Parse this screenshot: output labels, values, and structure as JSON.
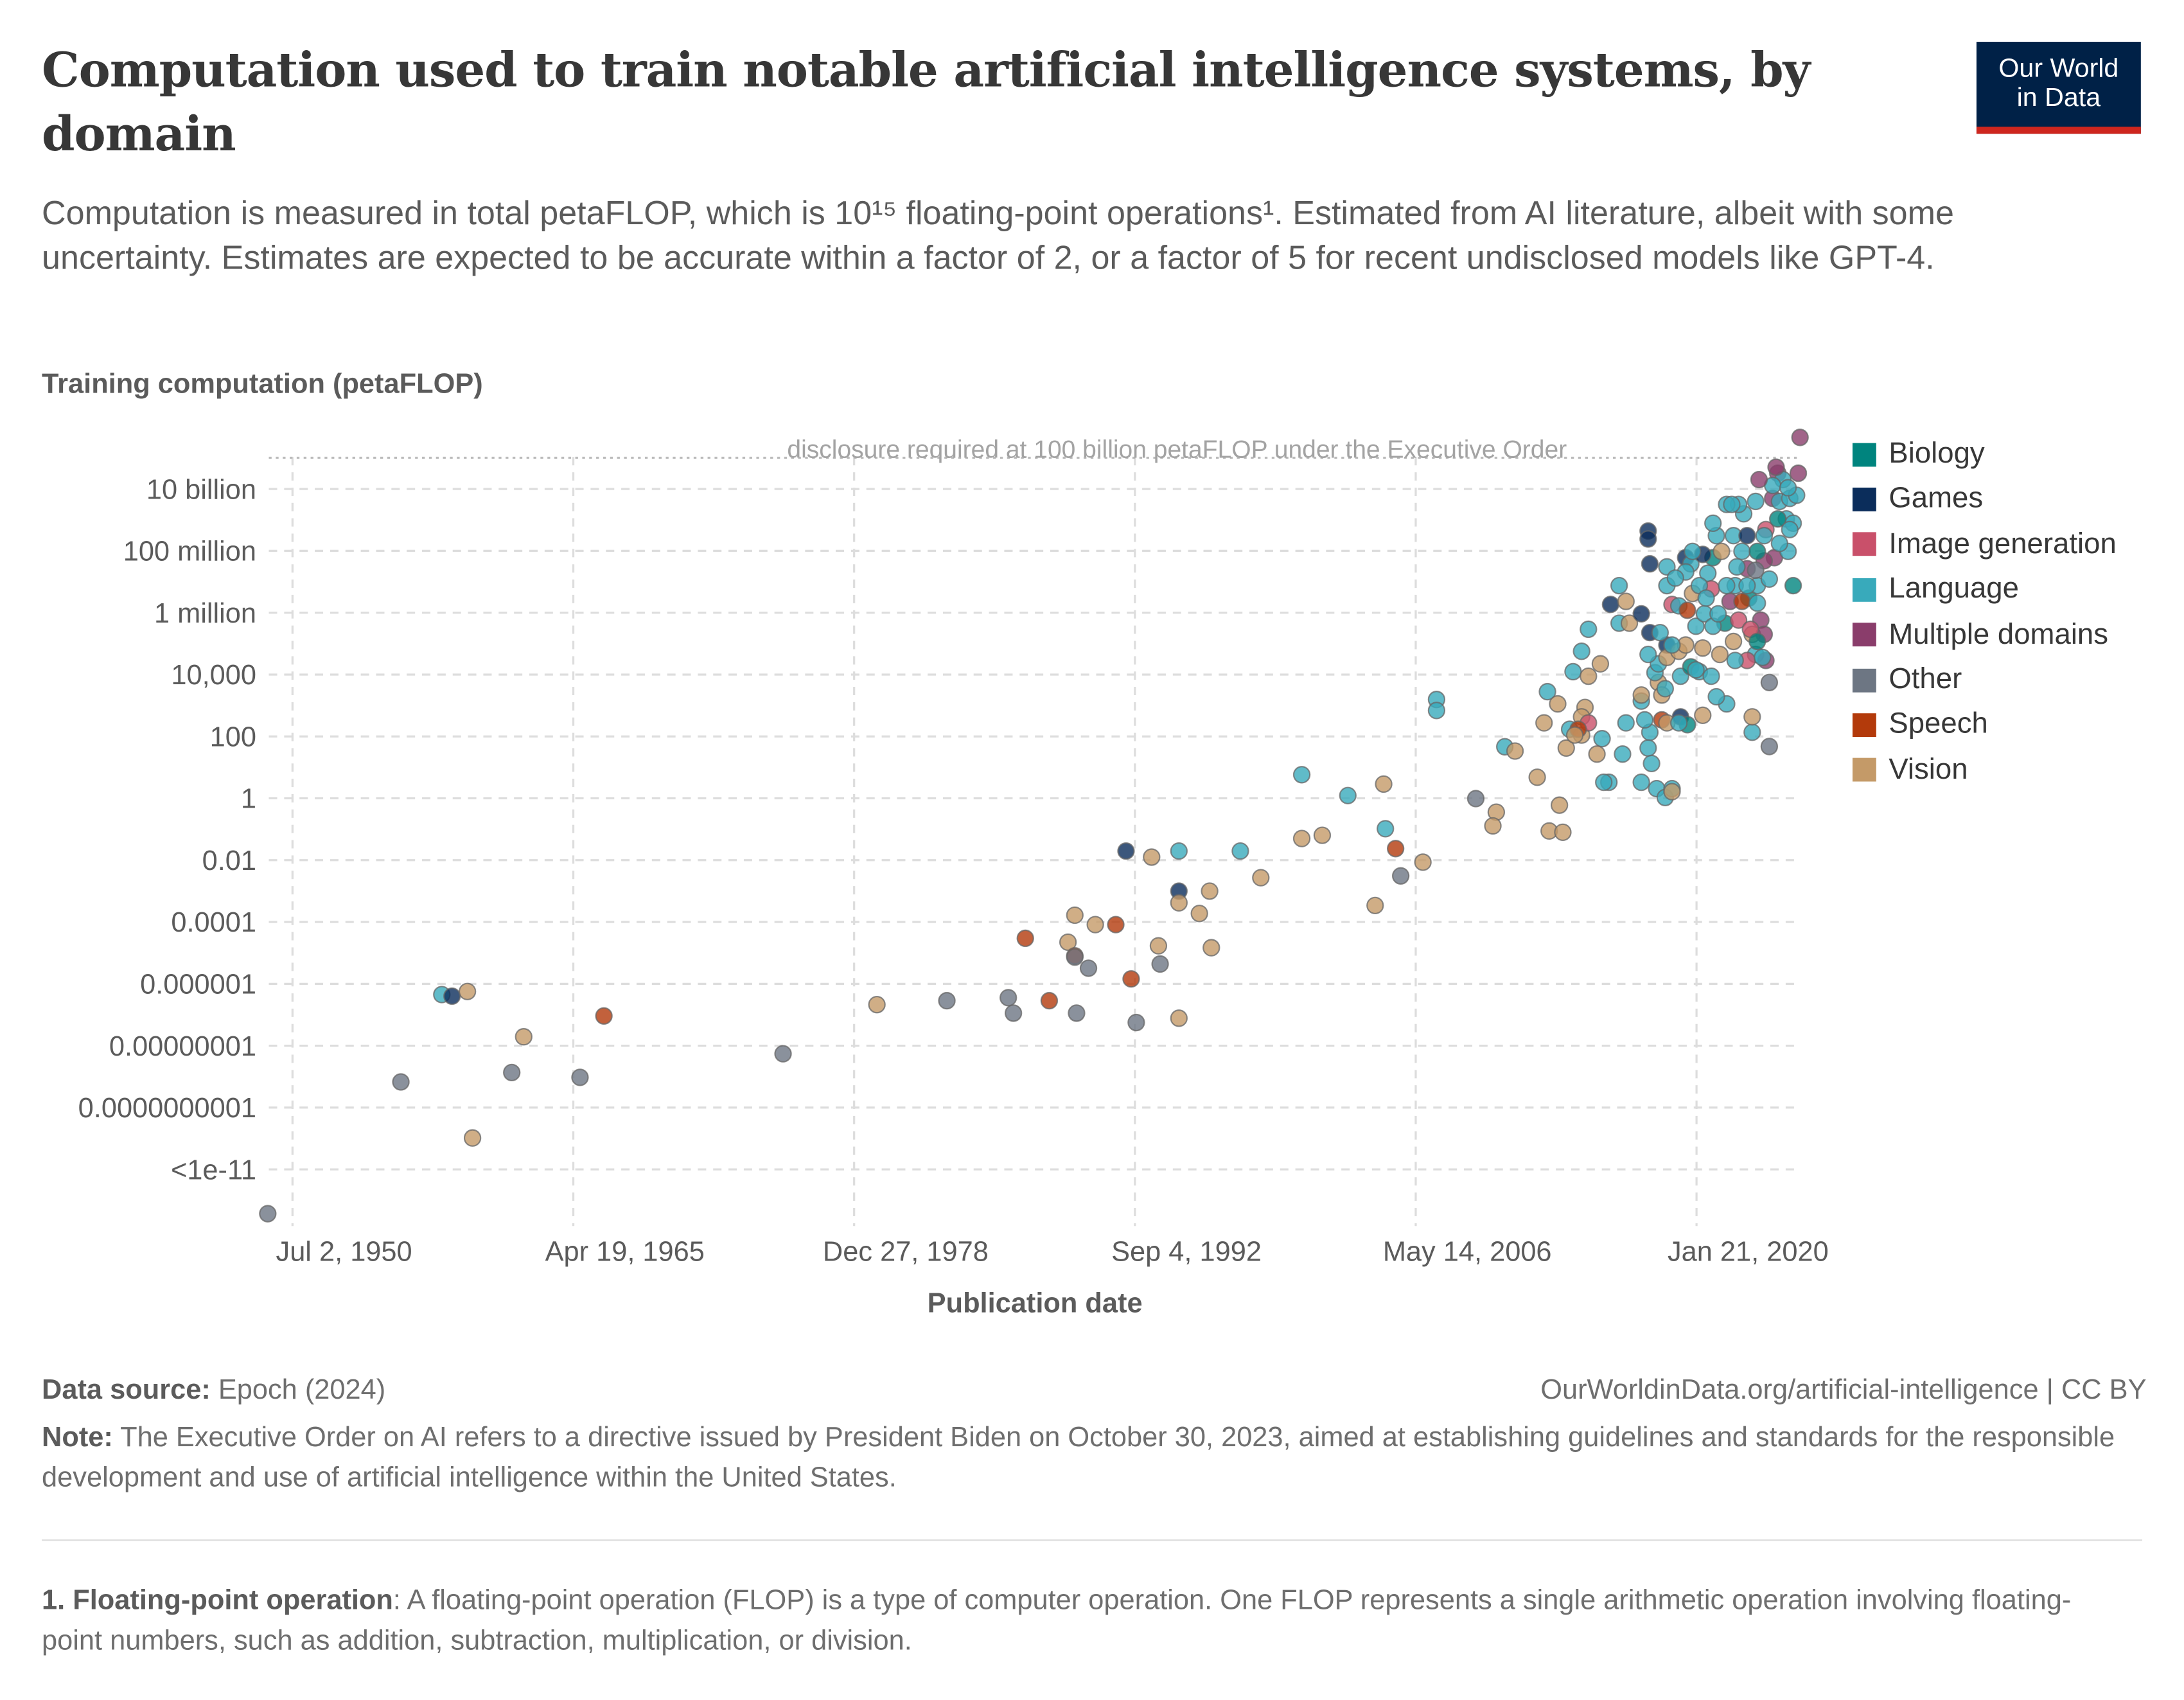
{
  "header": {
    "title": "Computation used to train notable artificial intelligence systems, by domain",
    "subtitle": "Computation is measured in total petaFLOP, which is 10¹⁵  floating-point operations¹. Estimated from AI literature, albeit with some uncertainty. Estimates are expected to be accurate within a factor of 2, or a factor of 5 for recent undisclosed models like GPT-4.",
    "logo_line1": "Our World",
    "logo_line2": "in Data"
  },
  "chart_data": {
    "type": "scatter",
    "ylabel": "Training computation (petaFLOP)",
    "xlabel": "Publication date",
    "y_scale": "log",
    "grid": true,
    "legend_position": "right",
    "y_ticks": [
      "10 billion",
      "100 million",
      "1 million",
      "10,000",
      "100",
      "1",
      "0.01",
      "0.0001",
      "0.000001",
      "0.00000001",
      "0.0000000001",
      "<1e-11"
    ],
    "x_ticks": [
      "Jul 2, 1950",
      "Apr 19, 1965",
      "Dec 27, 1978",
      "Sep 4, 1992",
      "May 14, 2006",
      "Jan 21, 2020"
    ],
    "reference_line": {
      "value": 100000000000,
      "label": "disclosure required at 100 billion petaFLOP under the Executive Order"
    },
    "categories": [
      {
        "name": "Biology",
        "color": "#00847e"
      },
      {
        "name": "Games",
        "color": "#0b2d5b"
      },
      {
        "name": "Image generation",
        "color": "#c9506a"
      },
      {
        "name": "Language",
        "color": "#38aabb"
      },
      {
        "name": "Multiple domains",
        "color": "#8a3d6b"
      },
      {
        "name": "Other",
        "color": "#6d7683"
      },
      {
        "name": "Speech",
        "color": "#b33a0b"
      },
      {
        "name": "Vision",
        "color": "#c49a68"
      }
    ],
    "points": [
      [
        "1949-04",
        6e-14,
        "Other"
      ],
      [
        "1955-10",
        1e-09,
        "Other"
      ],
      [
        "1957-10",
        6.3e-07,
        "Language"
      ],
      [
        "1958-04",
        5.6e-07,
        "Games"
      ],
      [
        "1959-01",
        7.9e-07,
        "Vision"
      ],
      [
        "1959-04",
        1.6e-11,
        "Vision"
      ],
      [
        "1961-03",
        2e-09,
        "Other"
      ],
      [
        "1961-10",
        2.8e-08,
        "Vision"
      ],
      [
        "1964-07",
        1.4e-09,
        "Other"
      ],
      [
        "1965-09",
        1.3e-07,
        "Speech"
      ],
      [
        "1974-06",
        8e-09,
        "Other"
      ],
      [
        "1979-01",
        3e-07,
        "Vision"
      ],
      [
        "1982-06",
        4e-07,
        "Other"
      ],
      [
        "1985-06",
        5e-07,
        "Other"
      ],
      [
        "1985-09",
        1.6e-07,
        "Other"
      ],
      [
        "1986-04",
        4e-05,
        "Speech"
      ],
      [
        "1987-06",
        4e-07,
        "Speech"
      ],
      [
        "1988-05",
        3e-05,
        "Vision"
      ],
      [
        "1988-09",
        0.00022,
        "Vision"
      ],
      [
        "1988-09",
        1.1e-05,
        "Speech"
      ],
      [
        "1988-09",
        1e-05,
        "Other"
      ],
      [
        "1988-10",
        1.6e-07,
        "Other"
      ],
      [
        "1989-05",
        4.4e-06,
        "Other"
      ],
      [
        "1989-09",
        0.00011,
        "Vision"
      ],
      [
        "1990-09",
        0.00011,
        "Speech"
      ],
      [
        "1991-03",
        0.025,
        "Games"
      ],
      [
        "1991-06",
        2e-06,
        "Speech"
      ],
      [
        "1991-09",
        8e-08,
        "Other"
      ],
      [
        "1992-06",
        0.016,
        "Vision"
      ],
      [
        "1992-10",
        2.3e-05,
        "Vision"
      ],
      [
        "1992-11",
        6e-06,
        "Other"
      ],
      [
        "1993-10",
        0.025,
        "Language"
      ],
      [
        "1993-10",
        0.0013,
        "Games"
      ],
      [
        "1993-10",
        0.00055,
        "Vision"
      ],
      [
        "1993-10",
        1.1e-07,
        "Vision"
      ],
      [
        "1994-10",
        0.00025,
        "Vision"
      ],
      [
        "1995-04",
        0.0013,
        "Vision"
      ],
      [
        "1995-05",
        2e-05,
        "Vision"
      ],
      [
        "1996-10",
        0.025,
        "Language"
      ],
      [
        "1997-10",
        0.0035,
        "Vision"
      ],
      [
        "1999-10",
        7,
        "Language"
      ],
      [
        "1999-10",
        0.063,
        "Vision"
      ],
      [
        "2000-10",
        0.08,
        "Vision"
      ],
      [
        "2002-01",
        1.5,
        "Language"
      ],
      [
        "2003-05",
        0.00045,
        "Vision"
      ],
      [
        "2003-10",
        3.5,
        "Vision"
      ],
      [
        "2003-11",
        0.13,
        "Language"
      ],
      [
        "2004-05",
        0.03,
        "Speech"
      ],
      [
        "2004-08",
        0.004,
        "Other"
      ],
      [
        "2005-09",
        0.011,
        "Vision"
      ],
      [
        "2006-05",
        1800,
        "Language"
      ],
      [
        "2006-05",
        800,
        "Language"
      ],
      [
        "2008-04",
        1.2,
        "Other"
      ],
      [
        "2009-04",
        0.44,
        "Vision"
      ],
      [
        "2009-02",
        0.16,
        "Vision"
      ],
      [
        "2009-09",
        55,
        "Language"
      ],
      [
        "2010-03",
        40,
        "Vision"
      ],
      [
        "2011-08",
        320,
        "Vision"
      ],
      [
        "2011-10",
        3200,
        "Language"
      ],
      [
        "2011-04",
        5.8,
        "Vision"
      ],
      [
        "2011-11",
        0.11,
        "Vision"
      ],
      [
        "2012-05",
        0.74,
        "Vision"
      ],
      [
        "2012-09",
        50,
        "Vision"
      ],
      [
        "2012-11",
        200,
        "Language"
      ],
      [
        "2013-01",
        14000,
        "Language"
      ],
      [
        "2013-10",
        320000,
        "Language"
      ],
      [
        "2013-06",
        63000,
        "Language"
      ],
      [
        "2012-04",
        1300,
        "Vision"
      ],
      [
        "2013-08",
        1000,
        "Vision"
      ],
      [
        "2013-06",
        500,
        "Vision"
      ],
      [
        "2013-06",
        130,
        "Vision"
      ],
      [
        "2013-10",
        320,
        "Image generation"
      ],
      [
        "2012-07",
        0.1,
        "Vision"
      ],
      [
        "2013-04",
        200,
        "Speech"
      ],
      [
        "2013-10",
        10000,
        "Vision"
      ],
      [
        "2014-05",
        25000,
        "Vision"
      ],
      [
        "2014-06",
        100,
        "Language"
      ],
      [
        "2014-10",
        4,
        "Language"
      ],
      [
        "2014-07",
        4,
        "Language"
      ],
      [
        "2014-11",
        2000000,
        "Games"
      ],
      [
        "2015-04",
        500000,
        "Language"
      ],
      [
        "2015-08",
        2500000,
        "Vision"
      ],
      [
        "2015-10",
        500000,
        "Vision"
      ],
      [
        "2015-04",
        8000000,
        "Language"
      ],
      [
        "2016-09",
        450000000,
        "Games"
      ],
      [
        "2016-09",
        250000000,
        "Games"
      ],
      [
        "2016-10",
        40000000,
        "Games"
      ],
      [
        "2016-10",
        160,
        "Language"
      ],
      [
        "2016-05",
        1600,
        "Language"
      ],
      [
        "2016-07",
        400,
        "Language"
      ],
      [
        "2016-09",
        50,
        "Language"
      ],
      [
        "2016-11",
        16,
        "Language"
      ],
      [
        "2017-02",
        2.5,
        "Language"
      ],
      [
        "2017-07",
        1.3,
        "Language"
      ],
      [
        "2017-11",
        2.5,
        "Language"
      ],
      [
        "2016-05",
        4,
        "Language"
      ],
      [
        "2017-03",
        6300,
        "Vision"
      ],
      [
        "2017-05",
        400,
        "Speech"
      ],
      [
        "2017-08",
        320,
        "Vision"
      ],
      [
        "2017-05",
        2500,
        "Vision"
      ],
      [
        "2017-11",
        2,
        "Vision"
      ],
      [
        "2016-05",
        2500,
        "Vision"
      ],
      [
        "2017-01",
        13000,
        "Language"
      ],
      [
        "2017-07",
        4000,
        "Language"
      ],
      [
        "2017-03",
        25000,
        "Language"
      ],
      [
        "2017-08",
        100000,
        "Games"
      ],
      [
        "2016-09",
        50000,
        "Language"
      ],
      [
        "2017-08",
        32000000,
        "Language"
      ],
      [
        "2016-05",
        1000000,
        "Games"
      ],
      [
        "2016-10",
        250000,
        "Games"
      ],
      [
        "2017-08",
        40000,
        "Vision"
      ],
      [
        "2017-11",
        2000000,
        "Image generation"
      ],
      [
        "2017-08",
        8000000,
        "Language"
      ],
      [
        "2018-03",
        63000,
        "Vision"
      ],
      [
        "2018-04",
        500,
        "Games"
      ],
      [
        "2018-04",
        10000,
        "Language"
      ],
      [
        "2018-07",
        100000,
        "Vision"
      ],
      [
        "2018-03",
        1800000,
        "Language"
      ],
      [
        "2018-07",
        63000000,
        "Games"
      ],
      [
        "2018-10",
        40000000,
        "Language"
      ],
      [
        "2018-08",
        1300000,
        "Speech"
      ],
      [
        "2018-11",
        4500000,
        "Vision"
      ],
      [
        "2019-01",
        400000,
        "Language"
      ],
      [
        "2018-10",
        20000,
        "Biology"
      ],
      [
        "2019-03",
        14000,
        "Language"
      ],
      [
        "2019-05",
        80000,
        "Vision"
      ],
      [
        "2019-06",
        1000000,
        "Language"
      ],
      [
        "2019-08",
        20000000,
        "Language"
      ],
      [
        "2019-10",
        6300000,
        "Image generation"
      ],
      [
        "2019-11",
        63000000,
        "Biology"
      ],
      [
        "2020-01",
        320000000,
        "Language"
      ],
      [
        "2020-03",
        50000,
        "Vision"
      ],
      [
        "2020-06",
        500000,
        "Biology"
      ],
      [
        "2020-07",
        1300,
        "Language"
      ],
      [
        "2020-09",
        2500000,
        "Multiple domains"
      ],
      [
        "2020-11",
        130000,
        "Vision"
      ],
      [
        "2020-12",
        8000000,
        "Language"
      ],
      [
        "2021-02",
        630000,
        "Image generation"
      ],
      [
        "2021-04",
        100000000,
        "Language"
      ],
      [
        "2021-05",
        1600000000,
        "Language"
      ],
      [
        "2021-07",
        28000000,
        "Multiple domains"
      ],
      [
        "2021-08",
        3200000,
        "Biology"
      ],
      [
        "2021-10",
        220000,
        "Vision"
      ],
      [
        "2021-12",
        50000,
        "Language"
      ],
      [
        "2022-01",
        8000000,
        "Language"
      ],
      [
        "2022-03",
        630000,
        "Multiple domains"
      ],
      [
        "2021-10",
        160,
        "Language"
      ],
      [
        "2022-06",
        500000000,
        "Image generation"
      ],
      [
        "2022-08",
        6300,
        "Other"
      ],
      [
        "2022-08",
        56,
        "Other"
      ],
      [
        "2022-10",
        5000000000,
        "Multiple domains"
      ],
      [
        "2022-11",
        63000000,
        "Multiple domains"
      ],
      [
        "2023-01",
        32000000000,
        "Multiple domains"
      ],
      [
        "2023-02",
        4000000000,
        "Language"
      ],
      [
        "2023-04",
        20000000000,
        "Language"
      ],
      [
        "2023-06",
        1100000000,
        "Language"
      ],
      [
        "2023-08",
        5000000000,
        "Language"
      ],
      [
        "2023-10",
        800000000,
        "Language"
      ],
      [
        "2023-12",
        6300000000,
        "Language"
      ],
      [
        "2023-10",
        8000000,
        "Biology"
      ],
      [
        "2022-12",
        50000000000,
        "Multiple domains"
      ],
      [
        "2022-10",
        13000000000,
        "Language"
      ],
      [
        "2022-02",
        20000000000,
        "Multiple domains"
      ],
      [
        "2024-02",
        450000000000,
        "Multiple domains"
      ],
      [
        "2024-01",
        32000000000,
        "Multiple domains"
      ],
      [
        "2022-05",
        50000000,
        "Multiple domains"
      ],
      [
        "2021-12",
        25000000,
        "Other"
      ],
      [
        "2021-02",
        3200000000,
        "Language"
      ],
      [
        "2020-07",
        3200000000,
        "Language"
      ],
      [
        "2020-04",
        100000000,
        "Vision"
      ],
      [
        "2020-11",
        320000000,
        "Language"
      ],
      [
        "2021-07",
        320000000,
        "Games"
      ],
      [
        "2022-01",
        100000000,
        "Biology"
      ],
      [
        "2022-05",
        320000000,
        "Language"
      ],
      [
        "2022-06",
        32000,
        "Multiple domains"
      ],
      [
        "2021-07",
        32000,
        "Image generation"
      ],
      [
        "2022-05",
        220000,
        "Multiple domains"
      ],
      [
        "2020-01",
        2200,
        "Language"
      ],
      [
        "2019-05",
        560,
        "Vision"
      ],
      [
        "2018-08",
        280,
        "Biology"
      ],
      [
        "2021-10",
        500,
        "Vision"
      ],
      [
        "2022-04",
        40000,
        "Language"
      ],
      [
        "2023-01",
        1100000000,
        "Biology"
      ],
      [
        "2023-07",
        100000000,
        "Language"
      ],
      [
        "2018-07",
        22000000,
        "Language"
      ],
      [
        "2019-05",
        80000000,
        "Games"
      ],
      [
        "2019-11",
        400000,
        "Language"
      ],
      [
        "2021-04",
        2500000,
        "Speech"
      ],
      [
        "2021-09",
        320000,
        "Image generation"
      ],
      [
        "2022-01",
        130000,
        "Biology"
      ],
      [
        "2018-01",
        14000000,
        "Language"
      ],
      [
        "2018-11",
        100000000,
        "Language"
      ],
      [
        "2019-03",
        8000000,
        "Language"
      ],
      [
        "2019-07",
        3200000,
        "Language"
      ],
      [
        "2020-02",
        1000000,
        "Language"
      ],
      [
        "2020-07",
        8000000,
        "Language"
      ],
      [
        "2021-01",
        32000000,
        "Language"
      ],
      [
        "2021-07",
        8000000,
        "Language"
      ],
      [
        "2022-01",
        2200000,
        "Language"
      ],
      [
        "2022-08",
        13000000,
        "Language"
      ],
      [
        "2023-02",
        180000000,
        "Language"
      ],
      [
        "2023-08",
        500000000,
        "Language"
      ],
      [
        "2017-04",
        250000,
        "Language"
      ],
      [
        "2017-11",
        100000,
        "Language"
      ],
      [
        "2018-03",
        320,
        "Language"
      ],
      [
        "2019-01",
        16000,
        "Language"
      ],
      [
        "2019-10",
        10000,
        "Language"
      ],
      [
        "2020-12",
        32000,
        "Language"
      ],
      [
        "2015-08",
        320,
        "Language"
      ],
      [
        "2015-06",
        32,
        "Language"
      ],
      [
        "2014-03",
        32,
        "Vision"
      ],
      [
        "2013-02",
        130,
        "Vision"
      ],
      [
        "2020-10",
        3200000000,
        "Language"
      ],
      [
        "2021-12",
        4000000000,
        "Language"
      ],
      [
        "2019-11",
        800000000,
        "Language"
      ],
      [
        "2023-07",
        11000000000,
        "Language"
      ]
    ]
  },
  "footer": {
    "source_label": "Data source:",
    "source_value": "Epoch (2024)",
    "url": "OurWorldinData.org/artificial-intelligence",
    "license": " | CC BY",
    "note_label": "Note:",
    "note_text": " The Executive Order on AI refers to a directive issued by President Biden on October 30, 2023, aimed at establishing guidelines and standards for the responsible development and use of artificial intelligence within the United States.",
    "footnote_label": "1. Floating-point operation",
    "footnote_text": ": A floating-point operation (FLOP) is a type of computer operation. One FLOP represents a single arithmetic operation involving floating-point numbers, such as addition, subtraction, multiplication, or division."
  }
}
